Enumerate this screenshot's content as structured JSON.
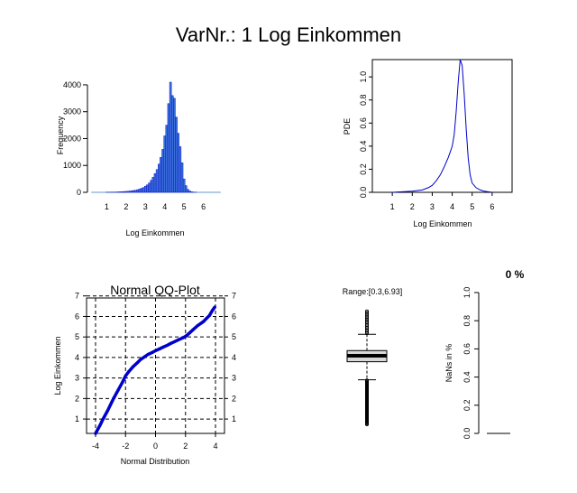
{
  "figure": {
    "title": "VarNr.: 1 Log Einkommen"
  },
  "chart_data": [
    {
      "type": "bar",
      "panel": "histogram",
      "xlabel": "Log Einkommen",
      "ylabel": "Frequency",
      "xlim": [
        0,
        7
      ],
      "ylim": [
        0,
        4200
      ],
      "xticks": [
        "1",
        "2",
        "3",
        "4",
        "5",
        "6"
      ],
      "yticks": [
        "0",
        "1000",
        "2000",
        "3000",
        "4000"
      ],
      "bin_centers": [
        1.0,
        1.1,
        1.2,
        1.3,
        1.4,
        1.5,
        1.6,
        1.7,
        1.8,
        1.9,
        2.0,
        2.1,
        2.2,
        2.3,
        2.4,
        2.5,
        2.6,
        2.7,
        2.8,
        2.9,
        3.0,
        3.1,
        3.2,
        3.3,
        3.4,
        3.5,
        3.6,
        3.7,
        3.8,
        3.9,
        4.0,
        4.1,
        4.2,
        4.3,
        4.4,
        4.5,
        4.6,
        4.7,
        4.8,
        4.9,
        5.0,
        5.1,
        5.2,
        5.3,
        5.4,
        5.5,
        5.6
      ],
      "values": [
        5,
        5,
        6,
        8,
        10,
        12,
        15,
        20,
        25,
        30,
        35,
        40,
        50,
        60,
        70,
        80,
        100,
        120,
        150,
        180,
        230,
        280,
        350,
        450,
        560,
        700,
        850,
        1050,
        1300,
        1600,
        2100,
        2500,
        3300,
        4100,
        3600,
        3500,
        2800,
        2200,
        1700,
        1100,
        500,
        250,
        110,
        50,
        20,
        10,
        5
      ],
      "color": "#0000cc"
    },
    {
      "type": "line",
      "panel": "density",
      "xlabel": "Log Einkommen",
      "ylabel": "PDE",
      "xlim": [
        0,
        7
      ],
      "ylim": [
        0,
        1.15
      ],
      "xticks": [
        "1",
        "2",
        "3",
        "4",
        "5",
        "6"
      ],
      "yticks": [
        "0.0",
        "0.2",
        "0.4",
        "0.6",
        "0.8",
        "1.0"
      ],
      "x": [
        1.0,
        1.5,
        2.0,
        2.5,
        2.8,
        3.0,
        3.2,
        3.4,
        3.6,
        3.8,
        3.9,
        4.0,
        4.1,
        4.2,
        4.3,
        4.4,
        4.5,
        4.6,
        4.7,
        4.8,
        4.9,
        5.0,
        5.2,
        5.4,
        5.6,
        5.8,
        6.0
      ],
      "y": [
        0.0,
        0.005,
        0.01,
        0.02,
        0.04,
        0.06,
        0.1,
        0.15,
        0.22,
        0.3,
        0.35,
        0.4,
        0.5,
        0.7,
        0.95,
        1.15,
        1.1,
        0.85,
        0.55,
        0.3,
        0.15,
        0.08,
        0.04,
        0.02,
        0.01,
        0.005,
        0.0
      ],
      "color": "#0000cc"
    },
    {
      "type": "scatter",
      "panel": "qqplot",
      "title": "Normal QQ-Plot",
      "xlabel": "Normal Distribution",
      "ylabel": "Log Einkommen",
      "xlim": [
        -4.6,
        4.6
      ],
      "ylim": [
        0.3,
        6.9
      ],
      "xticks": [
        "-4",
        "-2",
        "0",
        "2",
        "4"
      ],
      "yticks": [
        "1",
        "2",
        "3",
        "4",
        "5",
        "6",
        "7"
      ],
      "x": [
        -4.0,
        -3.7,
        -3.5,
        -3.2,
        -3.0,
        -2.8,
        -2.5,
        -2.2,
        -2.0,
        -1.8,
        -1.5,
        -1.2,
        -1.0,
        -0.7,
        -0.5,
        -0.2,
        0.0,
        0.3,
        0.5,
        0.8,
        1.0,
        1.3,
        1.5,
        1.8,
        2.0,
        2.2,
        2.5,
        2.8,
        3.0,
        3.2,
        3.4,
        3.6,
        3.8,
        3.95
      ],
      "y": [
        0.3,
        0.7,
        1.0,
        1.4,
        1.7,
        2.0,
        2.4,
        2.8,
        3.1,
        3.3,
        3.55,
        3.75,
        3.9,
        4.05,
        4.15,
        4.25,
        4.33,
        4.43,
        4.5,
        4.6,
        4.68,
        4.78,
        4.85,
        4.95,
        5.03,
        5.15,
        5.35,
        5.55,
        5.65,
        5.75,
        5.9,
        6.05,
        6.3,
        6.45
      ],
      "color": "#0000cc"
    },
    {
      "type": "box",
      "panel": "boxplot",
      "label": "Range:[0.3,6.93]",
      "min": 0.3,
      "max": 6.93,
      "q1": 3.95,
      "median": 4.3,
      "q3": 4.6,
      "whisker_low": 2.9,
      "whisker_high": 5.55
    },
    {
      "type": "bar",
      "panel": "nan_percentage",
      "title": "0 %",
      "ylabel": "NaNs in %",
      "ylim": [
        0,
        1.0
      ],
      "yticks": [
        "0.0",
        "0.2",
        "0.4",
        "0.6",
        "0.8",
        "1.0"
      ],
      "values": [
        0
      ]
    }
  ]
}
